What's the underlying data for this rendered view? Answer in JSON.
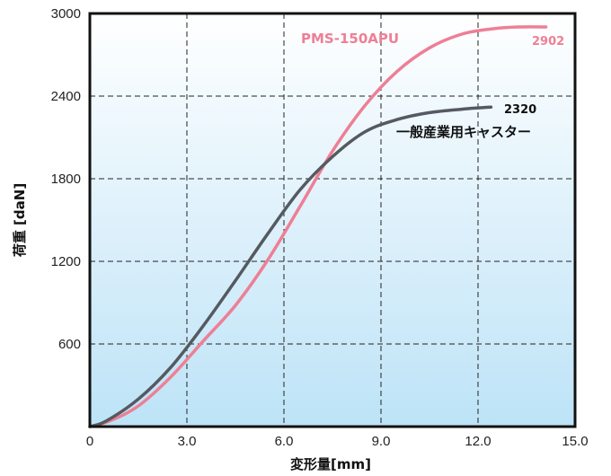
{
  "chart_data": {
    "type": "line",
    "title": "",
    "xlabel": "変形量[mm]",
    "ylabel": "荷重 [daN]",
    "xlim": [
      0,
      15.0
    ],
    "ylim": [
      0,
      3000
    ],
    "x_ticks": [
      "0",
      "3.0",
      "6.0",
      "9.0",
      "12.0",
      "15.0"
    ],
    "y_ticks": [
      "600",
      "1200",
      "1800",
      "2400",
      "3000"
    ],
    "grid": true,
    "background_gradient": [
      "#ffffff",
      "#bde3f7"
    ],
    "series": [
      {
        "name": "PMS-150APU",
        "color": "#ee7f95",
        "end_label": "2902",
        "points": [
          [
            0,
            0
          ],
          [
            0.6,
            40
          ],
          [
            1.5,
            150
          ],
          [
            2.5,
            360
          ],
          [
            3.5,
            620
          ],
          [
            4.5,
            880
          ],
          [
            5.5,
            1210
          ],
          [
            6.5,
            1600
          ],
          [
            7.5,
            2000
          ],
          [
            8.5,
            2330
          ],
          [
            9.5,
            2580
          ],
          [
            10.5,
            2750
          ],
          [
            11.5,
            2850
          ],
          [
            12.5,
            2890
          ],
          [
            13.3,
            2902
          ],
          [
            14.1,
            2902
          ]
        ]
      },
      {
        "name": "一般産業用キャスター",
        "color": "#555a60",
        "end_label": "2320",
        "points": [
          [
            0,
            0
          ],
          [
            0.5,
            40
          ],
          [
            1.5,
            200
          ],
          [
            2.5,
            430
          ],
          [
            3.5,
            730
          ],
          [
            4.5,
            1060
          ],
          [
            5.5,
            1400
          ],
          [
            6.5,
            1720
          ],
          [
            7.5,
            1960
          ],
          [
            8.5,
            2140
          ],
          [
            9.5,
            2230
          ],
          [
            10.5,
            2280
          ],
          [
            11.5,
            2305
          ],
          [
            12.4,
            2320
          ]
        ]
      }
    ]
  }
}
